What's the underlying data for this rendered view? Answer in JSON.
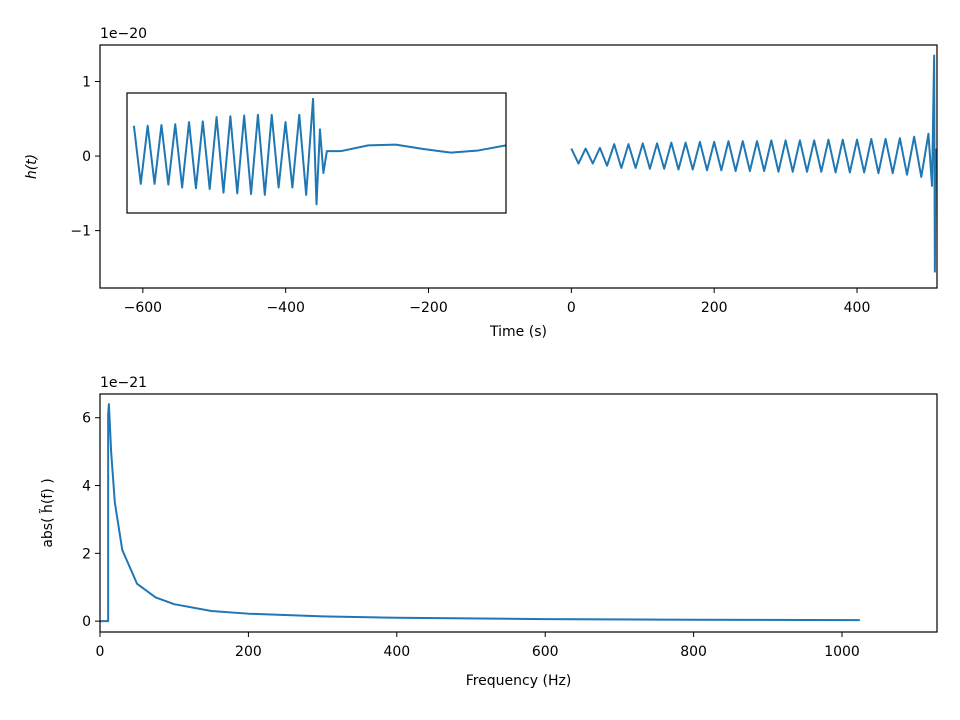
{
  "chart_data": [
    {
      "type": "line",
      "xlabel": "Time (s)",
      "ylabel": "h(t)",
      "offset_label": "1e−20",
      "x": [
        0,
        10,
        20,
        30,
        40,
        50,
        60,
        70,
        80,
        90,
        100,
        110,
        120,
        130,
        140,
        150,
        160,
        170,
        180,
        190,
        200,
        210,
        220,
        230,
        240,
        250,
        260,
        270,
        280,
        290,
        300,
        310,
        320,
        330,
        340,
        350,
        360,
        370,
        380,
        390,
        400,
        410,
        420,
        430,
        440,
        450,
        460,
        470,
        480,
        490,
        500,
        505,
        508,
        509,
        510
      ],
      "values": [
        0.1,
        -0.1,
        0.1,
        -0.1,
        0.11,
        -0.13,
        0.16,
        -0.16,
        0.16,
        -0.16,
        0.17,
        -0.17,
        0.17,
        -0.17,
        0.18,
        -0.18,
        0.18,
        -0.18,
        0.19,
        -0.19,
        0.19,
        -0.19,
        0.2,
        -0.2,
        0.2,
        -0.2,
        0.2,
        -0.2,
        0.21,
        -0.21,
        0.21,
        -0.21,
        0.21,
        -0.21,
        0.21,
        -0.21,
        0.22,
        -0.22,
        0.22,
        -0.22,
        0.22,
        -0.22,
        0.23,
        -0.23,
        0.23,
        -0.23,
        0.24,
        -0.25,
        0.26,
        -0.28,
        0.3,
        -0.4,
        1.35,
        -1.55,
        0.1
      ],
      "color": "#1f77b4",
      "xlim": [
        -660,
        512
      ],
      "ylim": [
        -1.77,
        1.49
      ],
      "xticks": [
        {
          "value": -600,
          "label": "−600"
        },
        {
          "value": -400,
          "label": "−400"
        },
        {
          "value": -200,
          "label": "−200"
        },
        0,
        200,
        400
      ],
      "yticks": [
        {
          "value": -1,
          "label": "−1"
        },
        0,
        1
      ]
    },
    {
      "type": "line",
      "xlabel": "Frequency (Hz)",
      "ylabel": "abs( h̃(f) )",
      "offset_label": "1e−21",
      "x": [
        0,
        11,
        11,
        12,
        15,
        20,
        30,
        50,
        75,
        100,
        150,
        200,
        300,
        400,
        600,
        800,
        1024
      ],
      "values": [
        0,
        0,
        6.1,
        6.4,
        5.0,
        3.5,
        2.1,
        1.1,
        0.7,
        0.5,
        0.3,
        0.22,
        0.14,
        0.1,
        0.06,
        0.04,
        0.03
      ],
      "color": "#1f77b4",
      "xlim": [
        0,
        1128
      ],
      "ylim": [
        -0.32,
        6.7
      ],
      "xticks": [
        0,
        200,
        400,
        600,
        800,
        1000
      ],
      "yticks": [
        0,
        2,
        4,
        6
      ]
    },
    {
      "type": "line",
      "x": [
        506.6,
        506.7,
        506.8,
        506.9,
        507.0,
        507.1,
        507.2,
        507.3,
        507.4,
        507.5,
        507.6,
        507.7,
        507.8,
        507.9,
        508.0,
        508.1,
        508.2,
        508.3,
        508.4,
        508.5,
        508.6,
        508.7,
        508.8,
        508.9,
        509.0,
        509.1,
        509.2,
        509.25,
        509.3,
        509.35,
        509.4,
        509.6,
        510.0,
        510.4,
        510.8,
        511.2,
        511.6,
        512.0
      ],
      "values": [
        0.4,
        -0.4,
        0.4,
        -0.4,
        0.41,
        -0.41,
        0.42,
        -0.45,
        0.45,
        -0.46,
        0.46,
        -0.47,
        0.52,
        -0.52,
        0.53,
        -0.53,
        0.54,
        -0.54,
        0.55,
        -0.55,
        0.55,
        -0.45,
        0.45,
        -0.45,
        0.55,
        -0.55,
        0.77,
        -0.68,
        0.35,
        -0.25,
        0.05,
        0.05,
        0.13,
        0.14,
        0.08,
        0.03,
        0.06,
        0.13
      ],
      "color": "#1f77b4",
      "xlim": [
        506.5,
        512.0
      ],
      "ylim": [
        -0.8,
        0.85
      ]
    }
  ]
}
